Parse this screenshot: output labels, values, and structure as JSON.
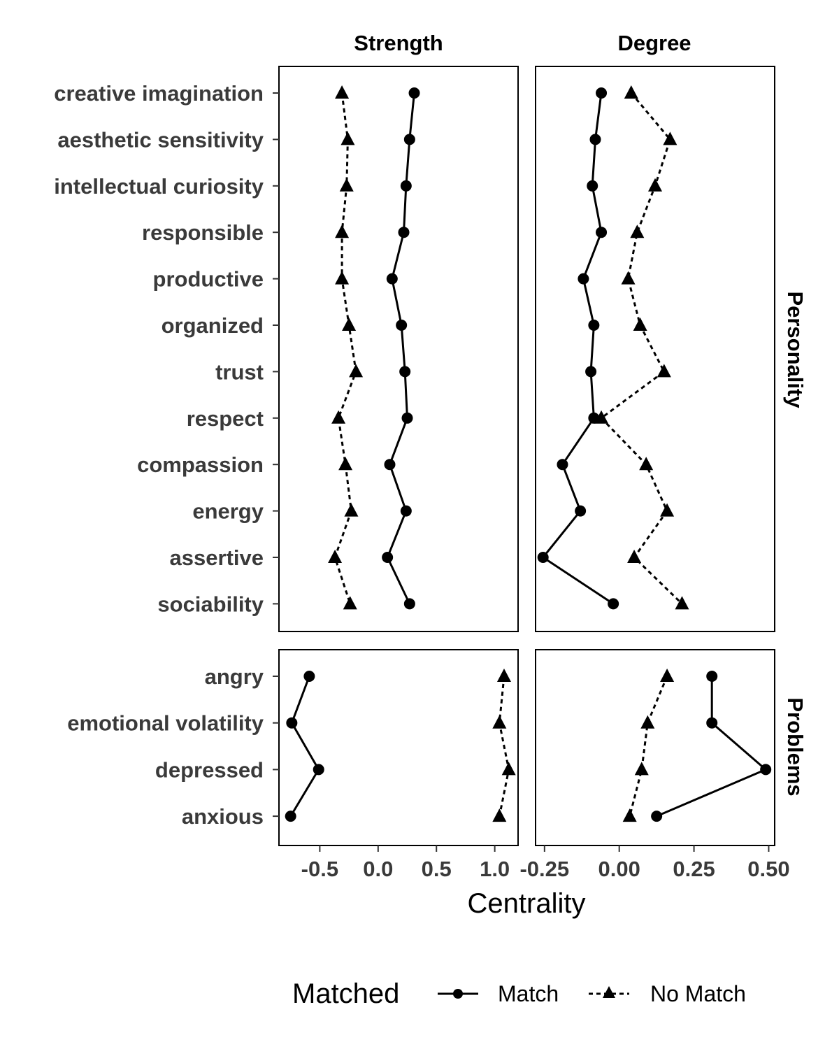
{
  "chart_data": {
    "type": "line",
    "xlabel": "Centrality",
    "columns": [
      "Strength",
      "Degree"
    ],
    "rows": [
      "Personality",
      "Problems"
    ],
    "row_items": {
      "Personality": [
        "creative imagination",
        "aesthetic sensitivity",
        "intellectual curiosity",
        "responsible",
        "productive",
        "organized",
        "trust",
        "respect",
        "compassion",
        "energy",
        "assertive",
        "sociability"
      ],
      "Problems": [
        "angry",
        "emotional volatility",
        "depressed",
        "anxious"
      ]
    },
    "xlim": {
      "Strength": [
        -0.85,
        1.2
      ],
      "Degree": [
        -0.28,
        0.52
      ]
    },
    "x_ticks": {
      "Strength": [
        -0.5,
        0.0,
        0.5,
        1.0
      ],
      "Degree": [
        -0.25,
        0.0,
        0.25,
        0.5
      ]
    },
    "x_tick_labels": {
      "Strength": [
        "-0.5",
        "0.0",
        "0.5",
        "1.0"
      ],
      "Degree": [
        "-0.25",
        "0.00",
        "0.25",
        "0.50"
      ]
    },
    "legend": {
      "title": "Matched",
      "placement": "bottom",
      "entries": [
        {
          "label": "Match",
          "line": "solid",
          "marker": "circle"
        },
        {
          "label": "No Match",
          "line": "dashed",
          "marker": "triangle"
        }
      ]
    },
    "series": [
      {
        "name": "Match",
        "values": {
          "Strength": {
            "Personality": [
              0.31,
              0.27,
              0.24,
              0.22,
              0.12,
              0.2,
              0.23,
              0.25,
              0.1,
              0.24,
              0.08,
              0.27
            ],
            "Problems": [
              -0.59,
              -0.74,
              -0.51,
              -0.75
            ]
          },
          "Degree": {
            "Personality": [
              -0.06,
              -0.08,
              -0.09,
              -0.06,
              -0.12,
              -0.085,
              -0.095,
              -0.085,
              -0.19,
              -0.13,
              -0.255,
              -0.02
            ],
            "Problems": [
              0.31,
              0.31,
              0.49,
              0.125
            ]
          }
        }
      },
      {
        "name": "No Match",
        "values": {
          "Strength": {
            "Personality": [
              -0.31,
              -0.26,
              -0.27,
              -0.31,
              -0.31,
              -0.25,
              -0.19,
              -0.34,
              -0.28,
              -0.23,
              -0.37,
              -0.24
            ],
            "Problems": [
              1.08,
              1.04,
              1.12,
              1.04
            ]
          },
          "Degree": {
            "Personality": [
              0.04,
              0.17,
              0.12,
              0.06,
              0.03,
              0.07,
              0.15,
              -0.06,
              0.09,
              0.16,
              0.05,
              0.21
            ],
            "Problems": [
              0.16,
              0.095,
              0.075,
              0.035
            ]
          }
        }
      }
    ]
  }
}
